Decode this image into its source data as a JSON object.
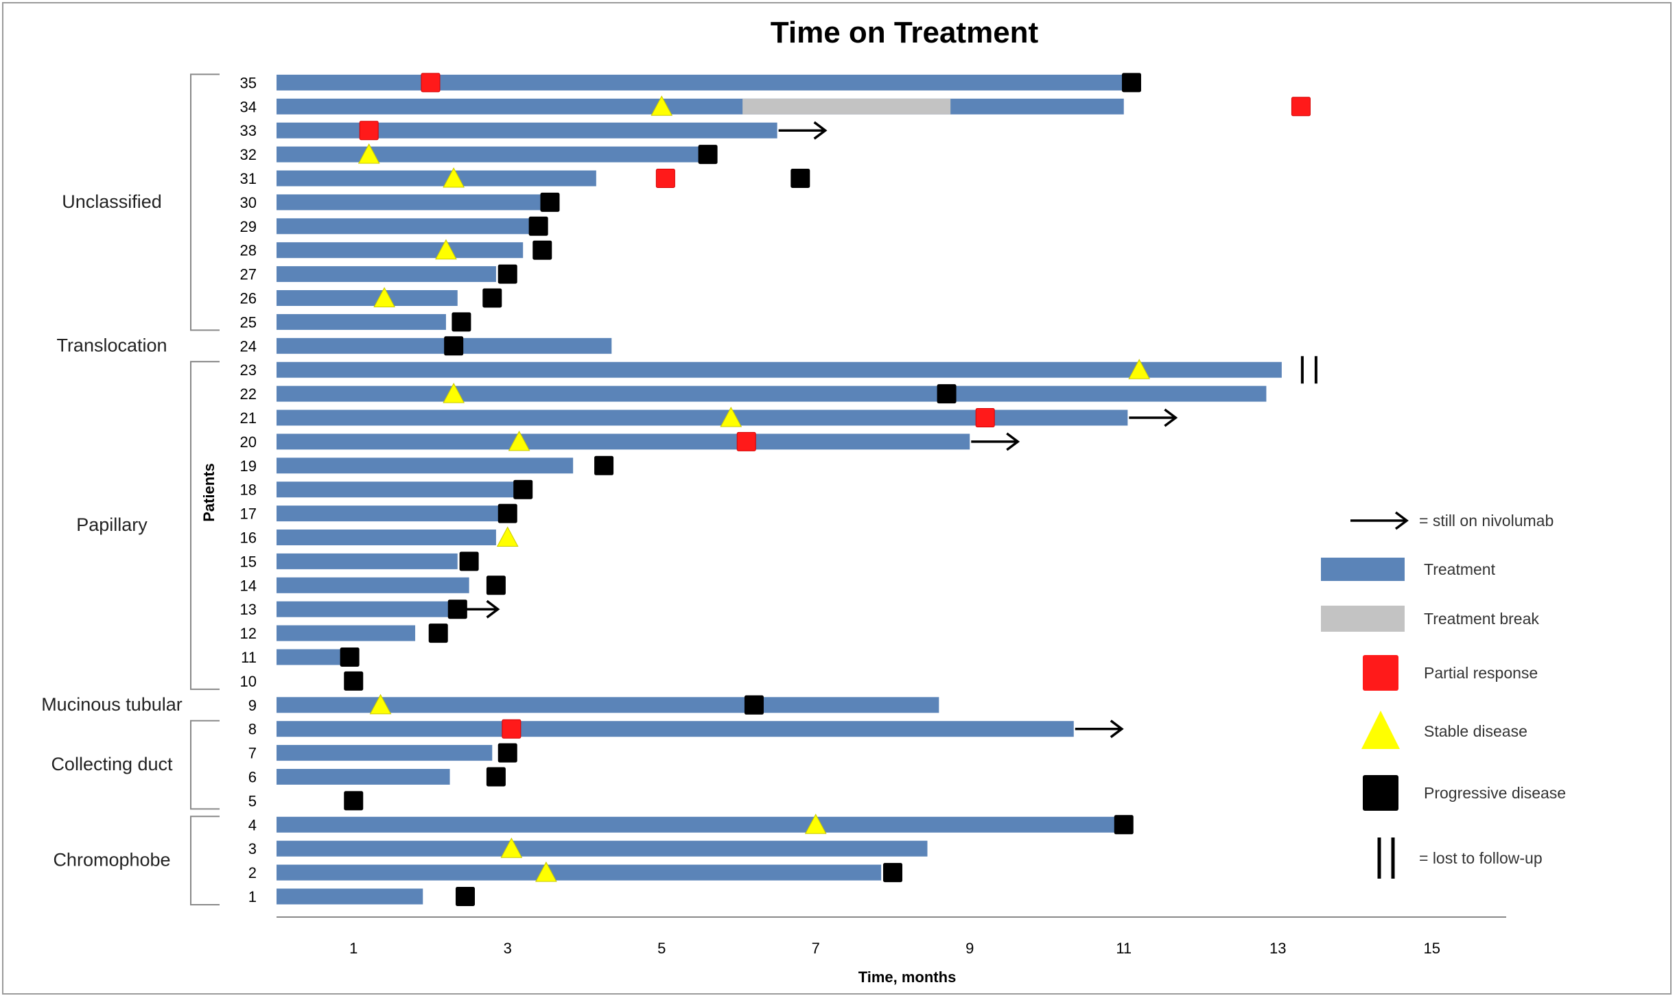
{
  "chart_data": {
    "type": "bar",
    "title": "Time on Treatment",
    "xlabel": "Time, months",
    "ylabel": "Patients",
    "xlim": [
      0,
      16
    ],
    "xticks": [
      1,
      3,
      5,
      7,
      9,
      11,
      13,
      15
    ],
    "grid": false,
    "legend_position": "right",
    "colors": {
      "treatment": "#5b84b8",
      "treatment_break": "#c3c3c3",
      "partial_response": "#ff1a1a",
      "stable_disease": "#ffff00",
      "progressive_disease": "#000000"
    },
    "groups": [
      {
        "name": "Unclassified",
        "patients": [
          25,
          35
        ]
      },
      {
        "name": "Translocation",
        "patients": [
          24,
          24
        ]
      },
      {
        "name": "Papillary",
        "patients": [
          10,
          23
        ]
      },
      {
        "name": "Mucinous tubular",
        "patients": [
          9,
          9
        ]
      },
      {
        "name": "Collecting duct",
        "patients": [
          5,
          8
        ]
      },
      {
        "name": "Chromophobe",
        "patients": [
          1,
          4
        ]
      }
    ],
    "legend": [
      {
        "key": "still_on",
        "symbol": "arrow",
        "label": "= still on nivolumab"
      },
      {
        "key": "treatment",
        "symbol": "bar",
        "label": "Treatment"
      },
      {
        "key": "treatment_break",
        "symbol": "break",
        "label": "Treatment break"
      },
      {
        "key": "partial_response",
        "symbol": "square_red",
        "label": "Partial response"
      },
      {
        "key": "stable_disease",
        "symbol": "triangle",
        "label": "Stable disease"
      },
      {
        "key": "progressive_disease",
        "symbol": "square_black",
        "label": "Progressive disease"
      },
      {
        "key": "lost",
        "symbol": "double_bar",
        "label": "= lost to follow-up"
      }
    ],
    "patients": [
      {
        "id": 35,
        "treatment": 11.0,
        "pr": [
          2.0
        ],
        "pd": [
          11.1
        ]
      },
      {
        "id": 34,
        "treatment": 11.0,
        "break": [
          6.05,
          8.75
        ],
        "sd": [
          5.0
        ],
        "pr": [
          13.3
        ]
      },
      {
        "id": 33,
        "treatment": 6.5,
        "pr": [
          1.2
        ],
        "arrow": true
      },
      {
        "id": 32,
        "treatment": 5.5,
        "sd": [
          1.2
        ],
        "pd": [
          5.6
        ]
      },
      {
        "id": 31,
        "treatment": 4.15,
        "sd": [
          2.3
        ],
        "pr": [
          5.05
        ],
        "pd": [
          6.8
        ]
      },
      {
        "id": 30,
        "treatment": 3.45,
        "pd": [
          3.55
        ]
      },
      {
        "id": 29,
        "treatment": 3.35,
        "pd": [
          3.4
        ]
      },
      {
        "id": 28,
        "treatment": 3.2,
        "sd": [
          2.2
        ],
        "pd": [
          3.45
        ]
      },
      {
        "id": 27,
        "treatment": 2.85,
        "pd": [
          3.0
        ]
      },
      {
        "id": 26,
        "treatment": 2.35,
        "sd": [
          1.4
        ],
        "pd": [
          2.8
        ]
      },
      {
        "id": 25,
        "treatment": 2.2,
        "pd": [
          2.4
        ]
      },
      {
        "id": 24,
        "treatment": 4.35,
        "pd": [
          2.3
        ]
      },
      {
        "id": 23,
        "treatment": 13.05,
        "sd": [
          11.2
        ],
        "lost": true
      },
      {
        "id": 22,
        "treatment": 12.85,
        "sd": [
          2.3
        ],
        "pd": [
          8.7
        ]
      },
      {
        "id": 21,
        "treatment": 11.05,
        "sd": [
          5.9
        ],
        "pr": [
          9.2
        ],
        "arrow": true
      },
      {
        "id": 20,
        "treatment": 9.0,
        "sd": [
          3.15
        ],
        "pr": [
          6.1
        ],
        "arrow": true
      },
      {
        "id": 19,
        "treatment": 3.85,
        "pd": [
          4.25
        ]
      },
      {
        "id": 18,
        "treatment": 3.15,
        "pd": [
          3.2
        ]
      },
      {
        "id": 17,
        "treatment": 2.9,
        "pd": [
          3.0
        ]
      },
      {
        "id": 16,
        "treatment": 2.85,
        "sd": [
          3.0
        ]
      },
      {
        "id": 15,
        "treatment": 2.35,
        "pd": [
          2.5
        ]
      },
      {
        "id": 14,
        "treatment": 2.5,
        "pd": [
          2.85
        ]
      },
      {
        "id": 13,
        "treatment": 2.25,
        "pd": [
          2.35
        ],
        "arrow": true
      },
      {
        "id": 12,
        "treatment": 1.8,
        "pd": [
          2.1
        ]
      },
      {
        "id": 11,
        "treatment": 0.85,
        "pd": [
          0.95
        ]
      },
      {
        "id": 10,
        "treatment": 0,
        "pd": [
          1.0
        ]
      },
      {
        "id": 9,
        "treatment": 8.6,
        "sd": [
          1.35
        ],
        "pd": [
          6.2
        ]
      },
      {
        "id": 8,
        "treatment": 10.35,
        "pr": [
          3.05
        ],
        "arrow": true
      },
      {
        "id": 7,
        "treatment": 2.8,
        "pd": [
          3.0
        ]
      },
      {
        "id": 6,
        "treatment": 2.25,
        "pd": [
          2.85
        ]
      },
      {
        "id": 5,
        "treatment": 0,
        "pd": [
          1.0
        ]
      },
      {
        "id": 4,
        "treatment": 10.95,
        "sd": [
          7.0
        ],
        "pd": [
          11.0
        ]
      },
      {
        "id": 3,
        "treatment": 8.45,
        "sd": [
          3.05
        ]
      },
      {
        "id": 2,
        "treatment": 7.85,
        "sd": [
          3.5
        ],
        "pd": [
          8.0
        ]
      },
      {
        "id": 1,
        "treatment": 1.9,
        "pd": [
          2.45
        ]
      }
    ]
  }
}
